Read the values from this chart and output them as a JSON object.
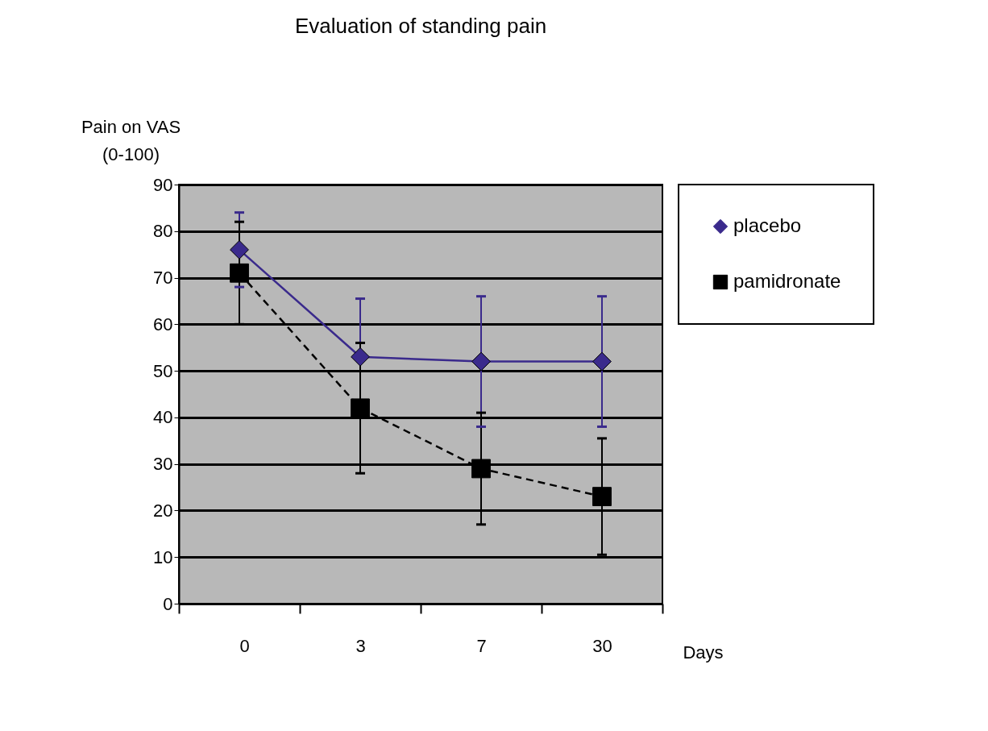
{
  "chart_data": {
    "type": "line",
    "title": "Evaluation of standing pain",
    "xlabel": "Days",
    "ylabel": "Pain on VAS\n(0-100)",
    "categories": [
      "0",
      "3",
      "7",
      "30"
    ],
    "series": [
      {
        "name": "placebo",
        "color": "#3a2a8c",
        "marker": "diamond",
        "line_style": "solid",
        "values": [
          76,
          53,
          52,
          52
        ],
        "errors": [
          8,
          12.5,
          14,
          14
        ]
      },
      {
        "name": "pamidronate",
        "color": "#000000",
        "marker": "square",
        "line_style": "dashed",
        "values": [
          71,
          42,
          29,
          23
        ],
        "errors": [
          11,
          14,
          12,
          12.5
        ]
      }
    ],
    "ylim": [
      0,
      90
    ],
    "yticks": [
      0,
      10,
      20,
      30,
      40,
      50,
      60,
      70,
      80,
      90
    ],
    "grid": "y",
    "legend": "right"
  }
}
